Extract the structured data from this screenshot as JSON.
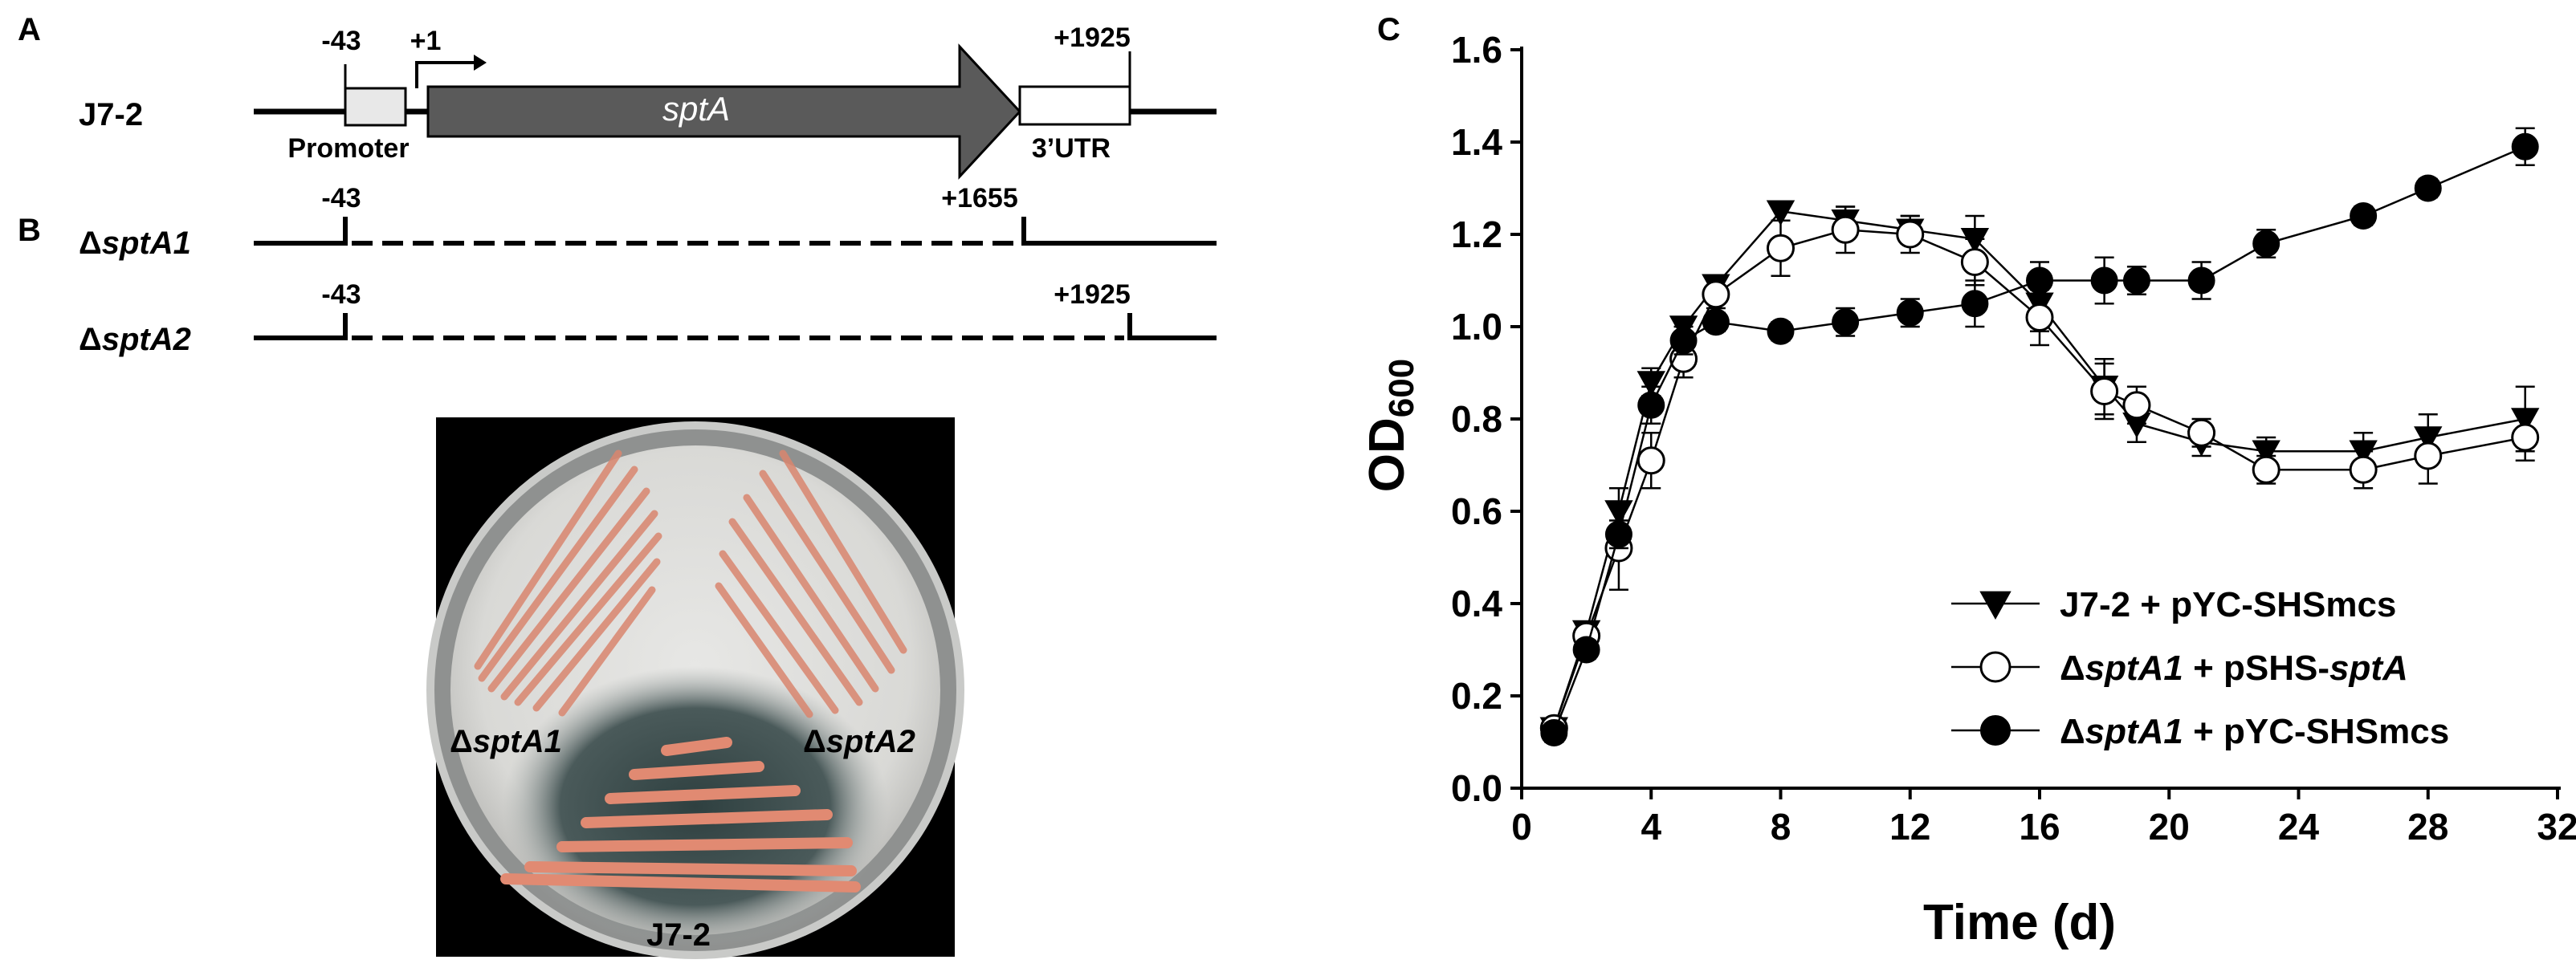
{
  "panel_labels": {
    "a": "A",
    "b": "B",
    "c": "C"
  },
  "gene_map": {
    "strain": "J7-2",
    "gene": "sptA",
    "promoter_label": "Promoter",
    "utr_label": "3’UTR",
    "pos_promoter_start": "-43",
    "pos_tss": "+1",
    "pos_end": "+1925",
    "pos_gene_stop": "+1655"
  },
  "deletions": [
    {
      "prefix": "Δ",
      "name": "sptA1",
      "left": "-43",
      "right": "+1655"
    },
    {
      "prefix": "Δ",
      "name": "sptA2",
      "left": "-43",
      "right": "+1925"
    }
  ],
  "plate": {
    "label_left_prefix": "Δ",
    "label_left": "sptA1",
    "label_right_prefix": "Δ",
    "label_right": "sptA2",
    "label_bottom": "J7-2"
  },
  "chart_data": {
    "type": "line",
    "xlabel": "Time (d)",
    "ylabel_main": "OD",
    "ylabel_sub": "600",
    "xlim": [
      0,
      32
    ],
    "ylim": [
      0,
      1.6
    ],
    "xticks": [
      "0",
      "4",
      "8",
      "12",
      "16",
      "20",
      "24",
      "28",
      "32"
    ],
    "yticks": [
      "0.0",
      "0.2",
      "0.4",
      "0.6",
      "0.8",
      "1.0",
      "1.2",
      "1.4",
      "1.6"
    ],
    "legend_position": "bottom-right",
    "series": [
      {
        "name": "J7-2 + pYC-SHSmcs",
        "legend_parts": [
          {
            "text": "J7-2 + pYC-SHSmcs",
            "italic": false
          }
        ],
        "marker": "triangle-down",
        "points": [
          [
            1,
            0.13
          ],
          [
            2,
            0.34
          ],
          [
            3,
            0.6
          ],
          [
            4,
            0.88
          ],
          [
            5,
            1.0
          ],
          [
            6,
            1.09
          ],
          [
            8,
            1.25
          ],
          [
            10,
            1.23
          ],
          [
            12,
            1.21
          ],
          [
            14,
            1.19
          ],
          [
            16,
            1.05
          ],
          [
            18,
            0.87
          ],
          [
            19,
            0.79
          ],
          [
            21,
            0.75
          ],
          [
            23,
            0.73
          ],
          [
            26,
            0.73
          ],
          [
            28,
            0.76
          ],
          [
            31,
            0.8
          ]
        ],
        "errors": [
          0.02,
          0.02,
          0.05,
          0.03,
          0.02,
          0.02,
          0.02,
          0.03,
          0.03,
          0.05,
          0.06,
          0.06,
          0.04,
          0.03,
          0.03,
          0.04,
          0.05,
          0.07
        ]
      },
      {
        "name": "ΔsptA1 + pSHS-sptA",
        "legend_parts": [
          {
            "text": "Δ",
            "italic": false
          },
          {
            "text": "sptA1",
            "italic": true
          },
          {
            "text": " + pSHS-",
            "italic": false
          },
          {
            "text": "sptA",
            "italic": true
          }
        ],
        "marker": "circle-open",
        "points": [
          [
            1,
            0.13
          ],
          [
            2,
            0.33
          ],
          [
            3,
            0.52
          ],
          [
            4,
            0.71
          ],
          [
            5,
            0.93
          ],
          [
            6,
            1.07
          ],
          [
            8,
            1.17
          ],
          [
            10,
            1.21
          ],
          [
            12,
            1.2
          ],
          [
            14,
            1.14
          ],
          [
            16,
            1.02
          ],
          [
            18,
            0.86
          ],
          [
            19,
            0.83
          ],
          [
            21,
            0.77
          ],
          [
            23,
            0.69
          ],
          [
            26,
            0.69
          ],
          [
            28,
            0.72
          ],
          [
            31,
            0.76
          ]
        ],
        "errors": [
          0.02,
          0.03,
          0.09,
          0.06,
          0.04,
          0.03,
          0.06,
          0.05,
          0.04,
          0.05,
          0.06,
          0.06,
          0.04,
          0.03,
          0.03,
          0.04,
          0.06,
          0.05
        ]
      },
      {
        "name": "ΔsptA1 + pYC-SHSmcs",
        "legend_parts": [
          {
            "text": "Δ",
            "italic": false
          },
          {
            "text": "sptA1",
            "italic": true
          },
          {
            "text": " + pYC-SHSmcs",
            "italic": false
          }
        ],
        "marker": "circle-filled",
        "points": [
          [
            1,
            0.12
          ],
          [
            2,
            0.3
          ],
          [
            3,
            0.55
          ],
          [
            4,
            0.83
          ],
          [
            5,
            0.97
          ],
          [
            6,
            1.01
          ],
          [
            8,
            0.99
          ],
          [
            10,
            1.01
          ],
          [
            12,
            1.03
          ],
          [
            14,
            1.05
          ],
          [
            16,
            1.1
          ],
          [
            18,
            1.1
          ],
          [
            19,
            1.1
          ],
          [
            21,
            1.1
          ],
          [
            23,
            1.18
          ],
          [
            26,
            1.24
          ],
          [
            28,
            1.3
          ],
          [
            31,
            1.39
          ]
        ],
        "errors": [
          0.02,
          0.02,
          0.03,
          0.04,
          0.03,
          0.02,
          0.02,
          0.03,
          0.03,
          0.05,
          0.04,
          0.05,
          0.03,
          0.04,
          0.03,
          0.02,
          0.02,
          0.04
        ]
      }
    ]
  }
}
